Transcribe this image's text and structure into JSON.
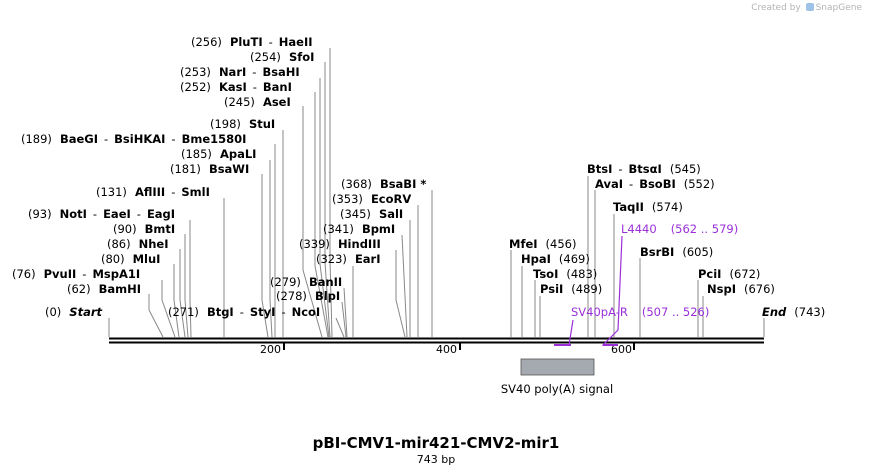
{
  "credit": {
    "prefix": "Created by",
    "brand": "SnapGene"
  },
  "plasmid": {
    "name": "pBI-CMV1-mir421-CMV2-mir1",
    "length_label": "743 bp"
  },
  "ticks": [
    "200",
    "400",
    "600"
  ],
  "sites": [
    {
      "pos": "(256)",
      "names": [
        [
          "PluTI",
          "HaeII"
        ]
      ]
    },
    {
      "pos": "(254)",
      "names": [
        [
          "SfoI"
        ]
      ]
    },
    {
      "pos": "(253)",
      "names": [
        [
          "NarI",
          "BsaHI"
        ]
      ]
    },
    {
      "pos": "(252)",
      "names": [
        [
          "KasI",
          "BanI"
        ]
      ]
    },
    {
      "pos": "(245)",
      "names": [
        [
          "AseI"
        ]
      ]
    },
    {
      "pos": "(198)",
      "names": [
        [
          "StuI"
        ]
      ]
    },
    {
      "pos": "(189)",
      "names": [
        [
          "BaeGI",
          "BsiHKAI",
          "Bme1580I"
        ]
      ]
    },
    {
      "pos": "(185)",
      "names": [
        [
          "ApaLI"
        ]
      ]
    },
    {
      "pos": "(181)",
      "names": [
        [
          "BsaWI"
        ]
      ]
    },
    {
      "pos": "(131)",
      "names": [
        [
          "AflIII",
          "SmlI"
        ]
      ]
    },
    {
      "pos": "(93)",
      "names": [
        [
          "NotI",
          "EaeI",
          "EagI"
        ]
      ]
    },
    {
      "pos": "(90)",
      "names": [
        [
          "BmtI"
        ]
      ]
    },
    {
      "pos": "(86)",
      "names": [
        [
          "NheI"
        ]
      ]
    },
    {
      "pos": "(80)",
      "names": [
        [
          "MluI"
        ]
      ]
    },
    {
      "pos": "(76)",
      "names": [
        [
          "PvuII",
          "MspA1I"
        ]
      ]
    },
    {
      "pos": "(62)",
      "names": [
        [
          "BamHI"
        ]
      ]
    },
    {
      "pos": "(0)",
      "names": [
        [
          "Start"
        ]
      ]
    },
    {
      "pos": "(271)",
      "names": [
        [
          "BtgI",
          "StyI",
          "NcoI"
        ]
      ]
    },
    {
      "pos": "(278)",
      "names": [
        [
          "BlpI"
        ]
      ]
    },
    {
      "pos": "(279)",
      "names": [
        [
          "BanII"
        ]
      ]
    },
    {
      "pos": "(323)",
      "names": [
        [
          "EarI"
        ]
      ]
    },
    {
      "pos": "(339)",
      "names": [
        [
          "HindIII"
        ]
      ]
    },
    {
      "pos": "(341)",
      "names": [
        [
          "BpmI"
        ]
      ]
    },
    {
      "pos": "(345)",
      "names": [
        [
          "SalI"
        ]
      ]
    },
    {
      "pos": "(353)",
      "names": [
        [
          "EcoRV"
        ]
      ]
    },
    {
      "pos": "(368)",
      "names": [
        [
          "BsaBI"
        ]
      ],
      "star": "*"
    },
    {
      "pos": "(456)",
      "names": [
        [
          "MfeI"
        ]
      ]
    },
    {
      "pos": "(469)",
      "names": [
        [
          "HpaI"
        ]
      ]
    },
    {
      "pos": "(483)",
      "names": [
        [
          "TsoI"
        ]
      ]
    },
    {
      "pos": "(489)",
      "names": [
        [
          "PsiI"
        ]
      ]
    },
    {
      "pos": "(545)",
      "names": [
        [
          "BtsI",
          "BtsαI"
        ]
      ]
    },
    {
      "pos": "(552)",
      "names": [
        [
          "AvaI",
          "BsoBI"
        ]
      ]
    },
    {
      "pos": "(574)",
      "names": [
        [
          "TaqII"
        ]
      ]
    },
    {
      "pos": "(605)",
      "names": [
        [
          "BsrBI"
        ]
      ]
    },
    {
      "pos": "(672)",
      "names": [
        [
          "PciI"
        ]
      ]
    },
    {
      "pos": "(676)",
      "names": [
        [
          "NspI"
        ]
      ]
    },
    {
      "pos": "(743)",
      "names": [
        [
          "End"
        ]
      ]
    }
  ],
  "primers": [
    {
      "name": "L4440",
      "range": "(562 .. 579)"
    },
    {
      "name": "SV40pA-R",
      "range": "(507 .. 526)"
    }
  ],
  "feature": {
    "label": "SV40 poly(A) signal"
  },
  "colors": {
    "primer": "#9b30d9",
    "feature_fill": "#a4aab0",
    "leader_line": "#888888"
  }
}
